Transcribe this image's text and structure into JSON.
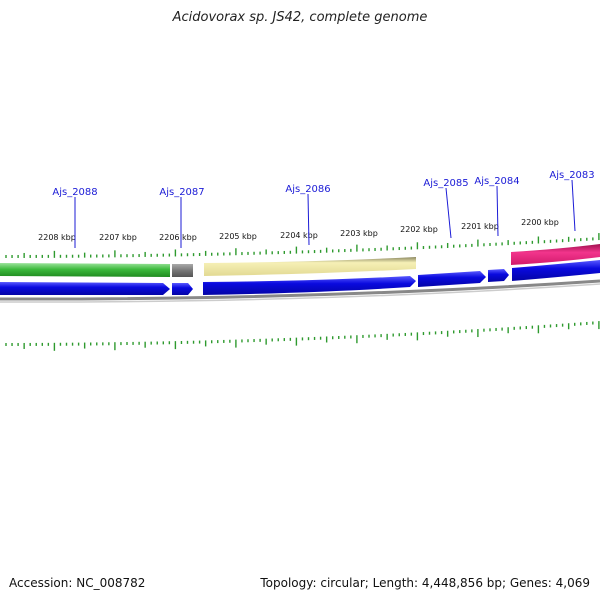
{
  "title": "Acidovorax sp. JS42, complete genome",
  "footer": {
    "accession": "Accession: NC_008782",
    "summary": "Topology: circular; Length: 4,448,856 bp; Genes: 4,069"
  },
  "scale_ticks": [
    "2208 kbp",
    "2207 kbp",
    "2206 kbp",
    "2205 kbp",
    "2204 kbp",
    "2203 kbp",
    "2202 kbp",
    "2201 kbp",
    "2200 kbp"
  ],
  "gene_labels": [
    "Ajs_2088",
    "Ajs_2087",
    "Ajs_2086",
    "Ajs_2085",
    "Ajs_2084",
    "Ajs_2083"
  ],
  "colors": {
    "tick": "#2e9a2e",
    "label": "#1b1bd6",
    "cds": "#0a0adf",
    "green_feature": "#3dba3d",
    "gray_feature": "#777777",
    "yellow_feature": "#ece5a2",
    "pink_feature": "#e8207c",
    "backbone": "#888888"
  }
}
